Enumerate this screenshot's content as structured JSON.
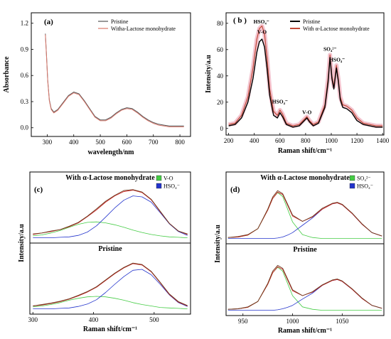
{
  "chart_data": [
    {
      "id": "a",
      "type": "line",
      "panel_label": "(a)",
      "xlabel": "wavelength/nm",
      "ylabel": "Absorbance",
      "xlim": [
        240,
        840
      ],
      "ylim": [
        -0.1,
        1.32
      ],
      "xticks": [
        "300",
        "400",
        "500",
        "600",
        "700",
        "800"
      ],
      "yticks": [
        "0.0",
        "0.3",
        "0.6",
        "0.9",
        "1.2"
      ],
      "series": [
        {
          "name": "Pristine",
          "color": "#555555",
          "x": [
            293,
            297,
            302,
            308,
            315,
            325,
            340,
            360,
            380,
            400,
            420,
            440,
            460,
            480,
            500,
            520,
            540,
            560,
            580,
            600,
            620,
            640,
            660,
            680,
            700,
            720,
            740,
            760,
            780,
            800,
            815
          ],
          "y": [
            1.08,
            0.85,
            0.55,
            0.32,
            0.22,
            0.18,
            0.21,
            0.29,
            0.37,
            0.41,
            0.39,
            0.31,
            0.22,
            0.13,
            0.09,
            0.09,
            0.12,
            0.17,
            0.21,
            0.23,
            0.22,
            0.18,
            0.13,
            0.09,
            0.06,
            0.04,
            0.03,
            0.02,
            0.02,
            0.02,
            0.02
          ]
        },
        {
          "name": "Witha-Lactose monohydrate",
          "color": "#d9776b",
          "x": [
            293,
            297,
            302,
            308,
            315,
            325,
            340,
            360,
            380,
            400,
            420,
            440,
            460,
            480,
            500,
            520,
            540,
            560,
            580,
            600,
            620,
            640,
            660,
            680,
            700,
            720,
            740,
            760,
            780,
            800,
            815
          ],
          "y": [
            1.07,
            0.84,
            0.54,
            0.31,
            0.21,
            0.17,
            0.2,
            0.28,
            0.36,
            0.4,
            0.38,
            0.3,
            0.21,
            0.12,
            0.08,
            0.08,
            0.11,
            0.16,
            0.2,
            0.22,
            0.21,
            0.17,
            0.12,
            0.08,
            0.05,
            0.03,
            0.02,
            0.01,
            0.01,
            0.01,
            0.01
          ]
        }
      ]
    },
    {
      "id": "b",
      "type": "line",
      "panel_label": "( b )",
      "xlabel": "Raman shift/cm⁻¹",
      "ylabel": "Intensity/a.u",
      "xlim": [
        180,
        1410
      ],
      "ylim": [
        -5,
        88
      ],
      "xticks": [
        "200",
        "400",
        "600",
        "800",
        "1000",
        "1200",
        "1400"
      ],
      "yticks": [
        "0",
        "20",
        "40",
        "60",
        "80"
      ],
      "series": [
        {
          "name": "Pristine",
          "color": "#000000",
          "x": [
            200,
            250,
            300,
            350,
            390,
            420,
            440,
            460,
            480,
            500,
            520,
            550,
            580,
            600,
            620,
            650,
            700,
            750,
            790,
            810,
            830,
            860,
            900,
            950,
            975,
            990,
            1005,
            1020,
            1040,
            1055,
            1070,
            1090,
            1120,
            1160,
            1200,
            1250,
            1300,
            1350,
            1400
          ],
          "y": [
            2,
            3,
            8,
            20,
            38,
            58,
            66,
            68,
            62,
            45,
            25,
            10,
            8,
            12,
            9,
            3,
            1,
            2,
            6,
            8,
            5,
            2,
            4,
            16,
            35,
            54,
            38,
            30,
            46,
            36,
            22,
            16,
            15,
            12,
            6,
            3,
            2,
            1,
            1
          ]
        },
        {
          "name": "With  α-Lactose monohydrate",
          "color": "#c24a3a",
          "x": [
            200,
            250,
            300,
            350,
            390,
            420,
            440,
            460,
            480,
            500,
            520,
            550,
            580,
            600,
            620,
            650,
            700,
            750,
            790,
            810,
            830,
            860,
            900,
            950,
            975,
            990,
            1005,
            1020,
            1040,
            1055,
            1070,
            1090,
            1120,
            1160,
            1200,
            1250,
            1300,
            1350,
            1400
          ],
          "y": [
            3,
            4,
            10,
            24,
            46,
            68,
            76,
            78,
            72,
            53,
            30,
            13,
            10,
            14,
            11,
            4,
            2,
            3,
            7,
            9,
            6,
            3,
            5,
            18,
            38,
            56,
            40,
            32,
            48,
            38,
            24,
            18,
            17,
            14,
            8,
            4,
            3,
            2,
            2
          ]
        }
      ],
      "annotations": [
        {
          "text": "HSO₄⁻",
          "x": 455,
          "y": 80
        },
        {
          "text": "V-O",
          "x": 460,
          "y": 72
        },
        {
          "text": "HSO₄⁻",
          "x": 600,
          "y": 19
        },
        {
          "text": "V-O",
          "x": 810,
          "y": 11
        },
        {
          "text": "SO₄²⁻",
          "x": 990,
          "y": 59
        },
        {
          "text": "HSO₄⁻",
          "x": 1045,
          "y": 51
        }
      ]
    },
    {
      "id": "c",
      "type": "line",
      "panel_label": "(c)",
      "xlabel": "Raman shift/cm⁻¹",
      "ylabel": "Intensity/a.u",
      "xlim": [
        295,
        560
      ],
      "xticks": [
        "300",
        "400",
        "500"
      ],
      "subpanels": [
        {
          "title": "With  α-Lactose monohydrate",
          "legend": [
            "V-O",
            "HSO₄⁻"
          ],
          "legend_colors": [
            "#44cc44",
            "#2233cc"
          ],
          "ylim": [
            -0.05,
            1.1
          ],
          "x": [
            300,
            315,
            330,
            345,
            360,
            375,
            390,
            405,
            420,
            435,
            450,
            465,
            480,
            495,
            510,
            525,
            540,
            555
          ],
          "experimental": [
            0.08,
            0.1,
            0.14,
            0.17,
            0.24,
            0.32,
            0.45,
            0.6,
            0.76,
            0.88,
            0.98,
            1.0,
            0.95,
            0.8,
            0.55,
            0.3,
            0.14,
            0.08
          ],
          "fit_total": [
            0.07,
            0.1,
            0.13,
            0.17,
            0.23,
            0.31,
            0.44,
            0.58,
            0.74,
            0.87,
            0.96,
            0.99,
            0.94,
            0.79,
            0.54,
            0.3,
            0.14,
            0.07
          ],
          "fit_vo": [
            0.04,
            0.06,
            0.1,
            0.15,
            0.22,
            0.28,
            0.32,
            0.33,
            0.31,
            0.27,
            0.22,
            0.16,
            0.11,
            0.07,
            0.04,
            0.02,
            0.01,
            0.0
          ],
          "fit_hso4": [
            0.0,
            0.0,
            0.0,
            0.01,
            0.02,
            0.05,
            0.12,
            0.25,
            0.43,
            0.62,
            0.78,
            0.87,
            0.85,
            0.74,
            0.52,
            0.29,
            0.13,
            0.05
          ]
        },
        {
          "title": "Pristine",
          "ylim": [
            -0.05,
            1.1
          ],
          "x": [
            300,
            315,
            330,
            345,
            360,
            375,
            390,
            405,
            420,
            435,
            450,
            465,
            480,
            495,
            510,
            525,
            540,
            555
          ],
          "experimental": [
            0.06,
            0.09,
            0.12,
            0.16,
            0.21,
            0.28,
            0.36,
            0.46,
            0.6,
            0.74,
            0.86,
            0.95,
            0.92,
            0.78,
            0.55,
            0.31,
            0.15,
            0.07
          ],
          "fit_total": [
            0.06,
            0.08,
            0.11,
            0.15,
            0.2,
            0.27,
            0.35,
            0.45,
            0.59,
            0.73,
            0.85,
            0.94,
            0.91,
            0.77,
            0.54,
            0.3,
            0.14,
            0.06
          ],
          "fit_vo": [
            0.04,
            0.06,
            0.09,
            0.13,
            0.18,
            0.22,
            0.25,
            0.26,
            0.25,
            0.22,
            0.18,
            0.13,
            0.09,
            0.06,
            0.03,
            0.02,
            0.01,
            0.0
          ],
          "fit_hso4": [
            0.0,
            0.0,
            0.0,
            0.01,
            0.02,
            0.05,
            0.1,
            0.19,
            0.34,
            0.51,
            0.67,
            0.8,
            0.82,
            0.71,
            0.51,
            0.29,
            0.13,
            0.05
          ]
        }
      ]
    },
    {
      "id": "d",
      "type": "line",
      "panel_label": "(d)",
      "xlabel": "Raman shift/cm⁻¹",
      "ylabel": "Intensity/a.u",
      "xlim": [
        933,
        1092
      ],
      "xticks": [
        "950",
        "1000",
        "1050"
      ],
      "subpanels": [
        {
          "title": "With  α-Lactose monohydrate",
          "legend": [
            "SO₄²⁻",
            "HSO₄⁻"
          ],
          "legend_colors": [
            "#44cc44",
            "#2233cc"
          ],
          "ylim": [
            -0.05,
            1.1
          ],
          "x": [
            935,
            945,
            955,
            965,
            975,
            980,
            985,
            990,
            995,
            1000,
            1010,
            1020,
            1030,
            1040,
            1045,
            1050,
            1060,
            1070,
            1080,
            1090
          ],
          "experimental": [
            0.02,
            0.04,
            0.08,
            0.2,
            0.6,
            0.85,
            0.98,
            0.92,
            0.7,
            0.48,
            0.35,
            0.45,
            0.62,
            0.72,
            0.74,
            0.7,
            0.52,
            0.3,
            0.12,
            0.05
          ],
          "fit_total": [
            0.02,
            0.03,
            0.07,
            0.2,
            0.58,
            0.82,
            0.95,
            0.9,
            0.68,
            0.46,
            0.35,
            0.44,
            0.6,
            0.71,
            0.73,
            0.69,
            0.51,
            0.29,
            0.12,
            0.05
          ],
          "fit_so4": [
            0.02,
            0.03,
            0.07,
            0.2,
            0.58,
            0.82,
            0.94,
            0.86,
            0.6,
            0.34,
            0.08,
            0.02,
            0.0,
            0.0,
            0.0,
            0.0,
            0.0,
            0.0,
            0.0,
            0.0
          ],
          "fit_hso4": [
            0.0,
            0.0,
            0.0,
            0.0,
            0.0,
            0.0,
            0.01,
            0.03,
            0.07,
            0.12,
            0.27,
            0.42,
            0.6,
            0.71,
            0.73,
            0.69,
            0.51,
            0.29,
            0.12,
            0.05
          ]
        },
        {
          "title": "Pristine",
          "ylim": [
            -0.05,
            1.1
          ],
          "x": [
            935,
            945,
            955,
            965,
            975,
            980,
            985,
            990,
            995,
            1000,
            1010,
            1020,
            1030,
            1040,
            1045,
            1050,
            1060,
            1070,
            1080,
            1090
          ],
          "experimental": [
            0.02,
            0.03,
            0.07,
            0.18,
            0.55,
            0.8,
            0.92,
            0.86,
            0.64,
            0.42,
            0.3,
            0.38,
            0.52,
            0.62,
            0.64,
            0.6,
            0.44,
            0.25,
            0.1,
            0.04
          ],
          "fit_total": [
            0.02,
            0.03,
            0.06,
            0.18,
            0.53,
            0.77,
            0.89,
            0.84,
            0.62,
            0.4,
            0.3,
            0.37,
            0.51,
            0.61,
            0.63,
            0.59,
            0.43,
            0.24,
            0.1,
            0.04
          ],
          "fit_so4": [
            0.02,
            0.03,
            0.06,
            0.18,
            0.53,
            0.77,
            0.88,
            0.8,
            0.55,
            0.3,
            0.07,
            0.02,
            0.0,
            0.0,
            0.0,
            0.0,
            0.0,
            0.0,
            0.0,
            0.0
          ],
          "fit_hso4": [
            0.0,
            0.0,
            0.0,
            0.0,
            0.0,
            0.0,
            0.01,
            0.03,
            0.06,
            0.1,
            0.23,
            0.35,
            0.51,
            0.61,
            0.63,
            0.59,
            0.43,
            0.24,
            0.1,
            0.04
          ]
        }
      ]
    }
  ],
  "colors": {
    "experimental": "#6b3a1e",
    "fit_total": "#cc2222",
    "component_green": "#44cc44",
    "component_blue": "#2233cc",
    "fit_magenta": "#cc44cc"
  }
}
